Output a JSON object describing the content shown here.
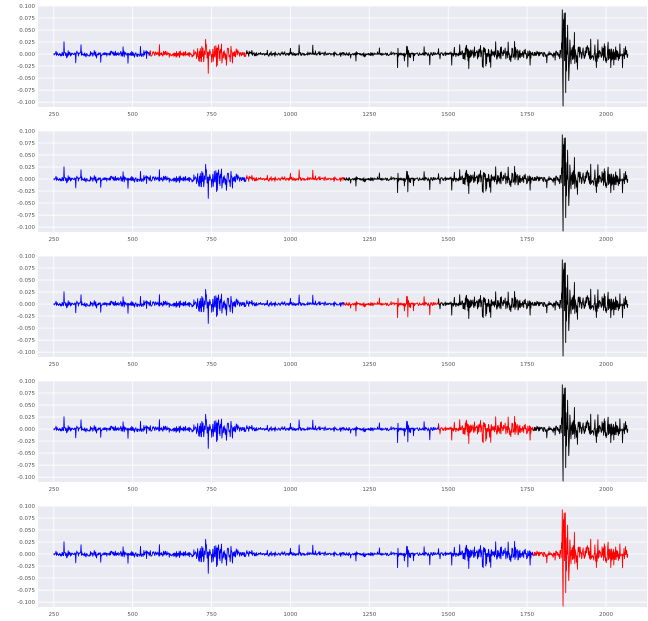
{
  "chart_data": [
    {
      "type": "line",
      "title": "",
      "xlabel": "",
      "ylabel": "",
      "xlim": [
        200,
        2130
      ],
      "ylim": [
        -0.11,
        0.1
      ],
      "x_ticks": [
        "250",
        "500",
        "750",
        "1000",
        "1250",
        "1500",
        "1750",
        "2000"
      ],
      "y_ticks": [
        "0.100",
        "0.075",
        "0.050",
        "0.025",
        "0.000",
        "-0.025",
        "-0.050",
        "-0.075",
        "-0.100"
      ],
      "grid": true,
      "series": [
        {
          "x_range": [
            250,
            555
          ],
          "color": "#0000ff"
        },
        {
          "x_range": [
            555,
            860
          ],
          "color": "#ff0000"
        },
        {
          "x_range": [
            860,
            2070
          ],
          "color": "#000000"
        }
      ]
    },
    {
      "type": "line",
      "title": "",
      "xlabel": "",
      "ylabel": "",
      "xlim": [
        200,
        2130
      ],
      "ylim": [
        -0.11,
        0.1
      ],
      "x_ticks": [
        "250",
        "500",
        "750",
        "1000",
        "1250",
        "1500",
        "1750",
        "2000"
      ],
      "y_ticks": [
        "0.100",
        "0.075",
        "0.050",
        "0.025",
        "0.000",
        "-0.025",
        "-0.050",
        "-0.075",
        "-0.100"
      ],
      "grid": true,
      "series": [
        {
          "x_range": [
            250,
            860
          ],
          "color": "#0000ff"
        },
        {
          "x_range": [
            860,
            1170
          ],
          "color": "#ff0000"
        },
        {
          "x_range": [
            1170,
            2070
          ],
          "color": "#000000"
        }
      ]
    },
    {
      "type": "line",
      "title": "",
      "xlabel": "",
      "ylabel": "",
      "xlim": [
        200,
        2130
      ],
      "ylim": [
        -0.11,
        0.1
      ],
      "x_ticks": [
        "250",
        "500",
        "750",
        "1000",
        "1250",
        "1500",
        "1750",
        "2000"
      ],
      "y_ticks": [
        "0.100",
        "0.075",
        "0.050",
        "0.025",
        "0.000",
        "-0.025",
        "-0.050",
        "-0.075",
        "-0.100"
      ],
      "grid": true,
      "series": [
        {
          "x_range": [
            250,
            1170
          ],
          "color": "#0000ff"
        },
        {
          "x_range": [
            1170,
            1470
          ],
          "color": "#ff0000"
        },
        {
          "x_range": [
            1470,
            2070
          ],
          "color": "#000000"
        }
      ]
    },
    {
      "type": "line",
      "title": "",
      "xlabel": "",
      "ylabel": "",
      "xlim": [
        200,
        2130
      ],
      "ylim": [
        -0.11,
        0.1
      ],
      "x_ticks": [
        "250",
        "500",
        "750",
        "1000",
        "1250",
        "1500",
        "1750",
        "2000"
      ],
      "y_ticks": [
        "0.100",
        "0.075",
        "0.050",
        "0.025",
        "0.000",
        "-0.025",
        "-0.050",
        "-0.075",
        "-0.100"
      ],
      "grid": true,
      "series": [
        {
          "x_range": [
            250,
            1470
          ],
          "color": "#0000ff"
        },
        {
          "x_range": [
            1470,
            1770
          ],
          "color": "#ff0000"
        },
        {
          "x_range": [
            1770,
            2070
          ],
          "color": "#000000"
        }
      ]
    },
    {
      "type": "line",
      "title": "",
      "xlabel": "",
      "ylabel": "",
      "xlim": [
        200,
        2130
      ],
      "ylim": [
        -0.11,
        0.1
      ],
      "x_ticks": [
        "250",
        "500",
        "750",
        "1000",
        "1250",
        "1500",
        "1750",
        "2000"
      ],
      "y_ticks": [
        "0.100",
        "0.075",
        "0.050",
        "0.025",
        "0.000",
        "-0.025",
        "-0.050",
        "-0.075",
        "-0.100"
      ],
      "grid": true,
      "series": [
        {
          "x_range": [
            250,
            1770
          ],
          "color": "#0000ff"
        },
        {
          "x_range": [
            1770,
            2070
          ],
          "color": "#ff0000"
        }
      ]
    }
  ]
}
